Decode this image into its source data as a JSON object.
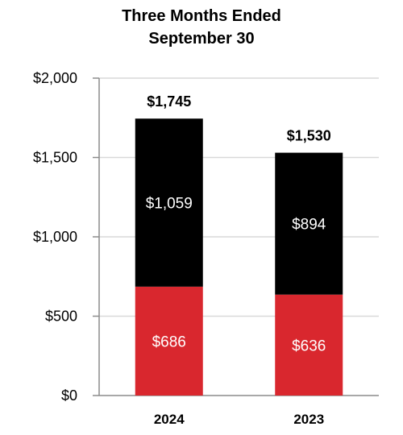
{
  "chart_data": {
    "type": "bar",
    "stacked": true,
    "title": [
      "Three Months Ended",
      "September 30"
    ],
    "categories": [
      "2024",
      "2023"
    ],
    "series": [
      {
        "values": [
          686,
          636
        ],
        "labels": [
          "$686",
          "$636"
        ],
        "color": "#d9272e"
      },
      {
        "values": [
          1059,
          894
        ],
        "labels": [
          "$1,059",
          "$894"
        ],
        "color": "#000000"
      }
    ],
    "totals": [
      1745,
      1530
    ],
    "total_labels": [
      "$1,745",
      "$1,530"
    ],
    "ylim": [
      0,
      2000
    ],
    "yticks": [
      0,
      500,
      1000,
      1500,
      2000
    ],
    "ytick_labels": [
      "$0",
      "$500",
      "$1,000",
      "$1,500",
      "$2,000"
    ],
    "xlabel": "",
    "ylabel": "",
    "grid": true,
    "grid_color": "#d9d9d9"
  }
}
